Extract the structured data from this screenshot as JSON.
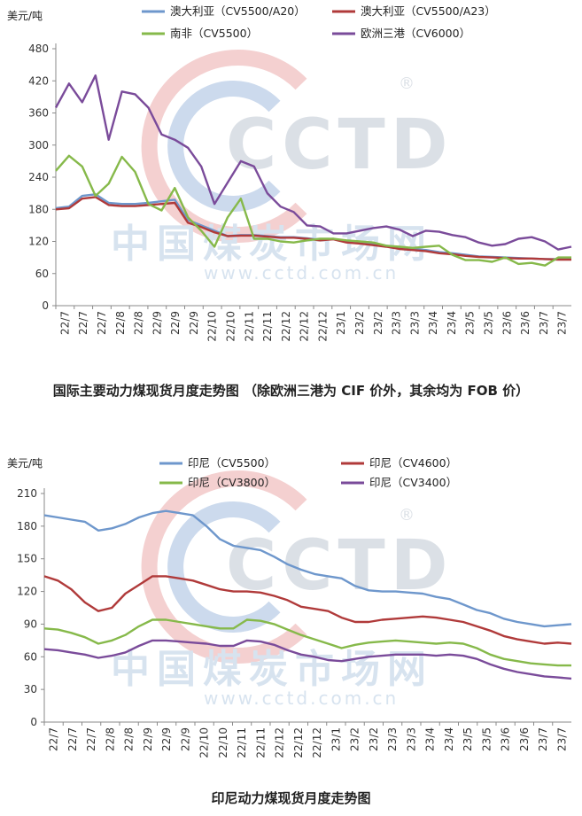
{
  "watermark": {
    "logo": "CCTD",
    "registered": "®",
    "cn_text": "中国煤炭市场网",
    "url": "www.cctd.com.cn"
  },
  "chart_data": [
    {
      "type": "line",
      "title": "国际主要动力煤现货月度走势图 （除欧洲三港为 CIF 价外，其余均为 FOB 价）",
      "ylabel": "美元/吨",
      "ylim": [
        0,
        480
      ],
      "yticks": [
        0,
        60,
        120,
        180,
        240,
        300,
        360,
        420,
        480
      ],
      "x_tick_labels": [
        "22/7",
        "22/7",
        "22/7",
        "22/8",
        "22/8",
        "22/9",
        "22/9",
        "22/9",
        "22/10",
        "22/10",
        "22/11",
        "22/11",
        "22/12",
        "22/12",
        "22/12",
        "23/1",
        "23/2",
        "23/2",
        "23/3",
        "23/3",
        "23/4",
        "23/4",
        "23/5",
        "23/5",
        "23/6",
        "23/6",
        "23/7",
        "23/7"
      ],
      "legend_position": "top",
      "series": [
        {
          "name": "澳大利亚（CV5500/A20）",
          "color": "#6e97cc",
          "values": [
            182,
            185,
            205,
            208,
            192,
            190,
            190,
            192,
            195,
            198,
            160,
            150,
            140,
            130,
            132,
            132,
            130,
            128,
            128,
            126,
            123,
            125,
            120,
            118,
            115,
            112,
            108,
            106,
            104,
            100,
            98,
            95,
            92,
            91,
            90,
            89,
            88,
            87,
            87,
            87
          ]
        },
        {
          "name": "澳大利亚（CV5500/A23）",
          "color": "#b03a3a",
          "values": [
            180,
            182,
            200,
            203,
            188,
            186,
            186,
            188,
            190,
            192,
            155,
            147,
            137,
            130,
            131,
            131,
            129,
            127,
            127,
            125,
            122,
            124,
            118,
            116,
            113,
            110,
            106,
            104,
            102,
            98,
            96,
            93,
            91,
            90,
            89,
            88,
            88,
            87,
            86,
            86
          ]
        },
        {
          "name": "南非（CV5500）",
          "color": "#86b94a",
          "values": [
            252,
            280,
            260,
            205,
            228,
            278,
            250,
            190,
            178,
            220,
            165,
            140,
            110,
            165,
            200,
            125,
            125,
            120,
            118,
            122,
            125,
            125,
            122,
            120,
            118,
            112,
            110,
            108,
            110,
            112,
            95,
            85,
            85,
            82,
            90,
            78,
            80,
            75,
            90,
            90
          ]
        },
        {
          "name": "欧洲三港（CV6000）",
          "color": "#7a4b9a",
          "values": [
            370,
            415,
            380,
            430,
            310,
            400,
            395,
            370,
            320,
            310,
            295,
            260,
            190,
            230,
            270,
            260,
            210,
            185,
            175,
            150,
            148,
            135,
            135,
            140,
            145,
            148,
            142,
            130,
            140,
            138,
            132,
            128,
            118,
            112,
            115,
            125,
            128,
            120,
            105,
            110
          ]
        }
      ]
    },
    {
      "type": "line",
      "title": "印尼动力煤现货月度走势图",
      "ylabel": "美元/吨",
      "ylim": [
        0,
        210
      ],
      "yticks": [
        0,
        30,
        60,
        90,
        120,
        150,
        180,
        210
      ],
      "x_tick_labels": [
        "22/7",
        "22/7",
        "22/7",
        "22/8",
        "22/8",
        "22/9",
        "22/9",
        "22/9",
        "22/10",
        "22/10",
        "22/11",
        "22/11",
        "22/12",
        "22/12",
        "22/12",
        "23/1",
        "23/2",
        "23/2",
        "23/3",
        "23/3",
        "23/4",
        "23/4",
        "23/5",
        "23/5",
        "23/6",
        "23/6",
        "23/7",
        "23/7"
      ],
      "legend_position": "top",
      "series": [
        {
          "name": "印尼（CV5500）",
          "color": "#6e97cc",
          "values": [
            190,
            188,
            186,
            184,
            176,
            178,
            182,
            188,
            192,
            194,
            192,
            190,
            180,
            168,
            162,
            160,
            158,
            152,
            145,
            140,
            136,
            134,
            132,
            125,
            121,
            120,
            120,
            119,
            118,
            115,
            113,
            108,
            103,
            100,
            95,
            92,
            90,
            88,
            89,
            90
          ]
        },
        {
          "name": "印尼（CV4600）",
          "color": "#b03a3a",
          "values": [
            134,
            130,
            122,
            110,
            102,
            105,
            118,
            126,
            134,
            134,
            132,
            130,
            126,
            122,
            120,
            120,
            119,
            116,
            112,
            106,
            104,
            102,
            96,
            92,
            92,
            94,
            95,
            96,
            97,
            96,
            94,
            92,
            88,
            84,
            79,
            76,
            74,
            72,
            73,
            72
          ]
        },
        {
          "name": "印尼（CV3800）",
          "color": "#86b94a",
          "values": [
            86,
            85,
            82,
            78,
            72,
            75,
            80,
            88,
            94,
            94,
            92,
            90,
            88,
            86,
            86,
            94,
            93,
            90,
            85,
            80,
            76,
            72,
            68,
            71,
            73,
            74,
            75,
            74,
            73,
            72,
            73,
            72,
            68,
            62,
            58,
            56,
            54,
            53,
            52,
            52
          ]
        },
        {
          "name": "印尼（CV3400）",
          "color": "#7a4b9a",
          "values": [
            67,
            66,
            64,
            62,
            59,
            61,
            64,
            70,
            75,
            75,
            74,
            73,
            72,
            70,
            70,
            75,
            74,
            71,
            66,
            62,
            60,
            57,
            56,
            58,
            60,
            61,
            62,
            62,
            62,
            61,
            62,
            61,
            58,
            53,
            49,
            46,
            44,
            42,
            41,
            40
          ]
        }
      ]
    }
  ]
}
